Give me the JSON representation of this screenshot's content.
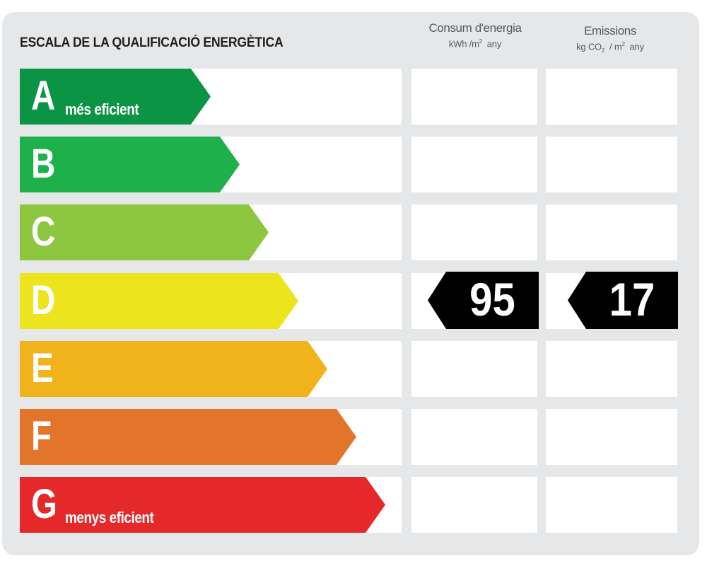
{
  "title": "ESCALA DE LA QUALIFICACIÓ ENERGÈTICA",
  "columns": {
    "energy": {
      "label": "Consum d'energia",
      "unit_prefix": "kWh /m",
      "unit_sup": "2",
      "unit_suffix": "any"
    },
    "emissions": {
      "label": "Emissions",
      "unit_prefix": "kg CO",
      "unit_sub": "2",
      "unit_mid": "/ m",
      "unit_sup": "2",
      "unit_suffix": "any"
    }
  },
  "bands": [
    {
      "letter": "A",
      "note": "més eficient",
      "color": "#0b9444"
    },
    {
      "letter": "B",
      "note": "",
      "color": "#1eb14b"
    },
    {
      "letter": "C",
      "note": "",
      "color": "#8dc63f"
    },
    {
      "letter": "D",
      "note": "",
      "color": "#ece51d"
    },
    {
      "letter": "E",
      "note": "",
      "color": "#f1b31c"
    },
    {
      "letter": "F",
      "note": "",
      "color": "#e3752b"
    },
    {
      "letter": "G",
      "note": "menys eficient",
      "color": "#e5282a"
    }
  ],
  "rating": {
    "band": "D",
    "energy_value": "95",
    "emissions_value": "17",
    "marker_color": "#000000"
  }
}
